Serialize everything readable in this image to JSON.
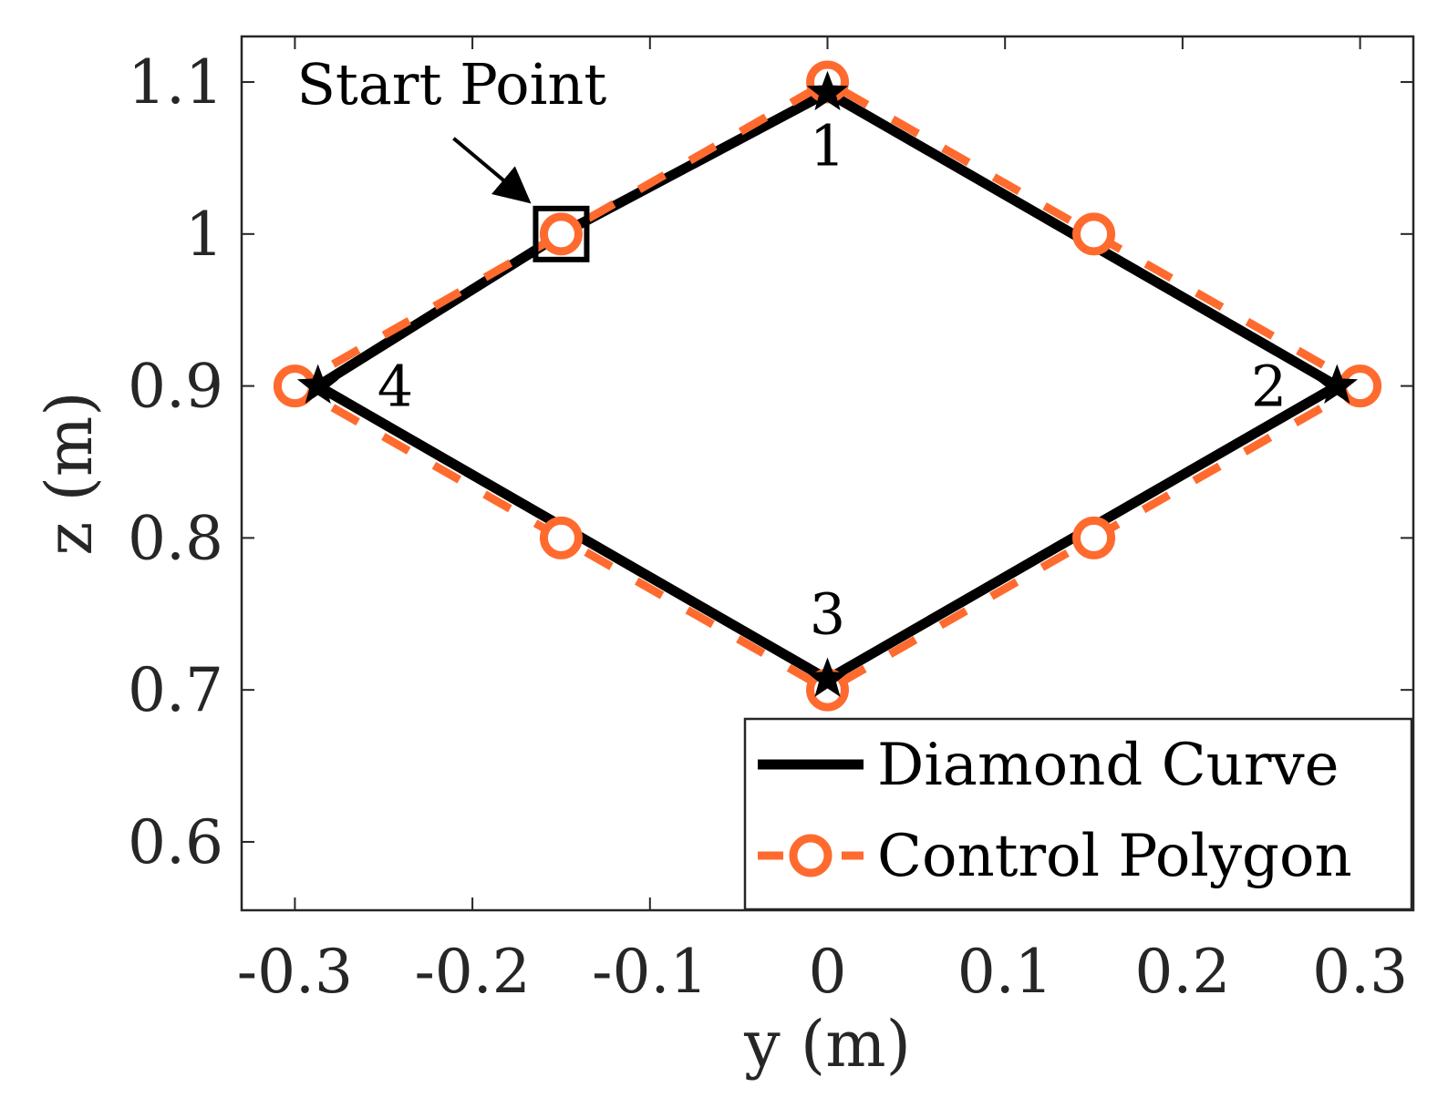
{
  "chart_data": {
    "type": "line",
    "title": "",
    "xlabel": "y (m)",
    "ylabel": "z (m)",
    "xlim": [
      -0.33,
      0.33
    ],
    "ylim": [
      0.555,
      1.13
    ],
    "xticks": [
      -0.3,
      -0.2,
      -0.1,
      0,
      0.1,
      0.2,
      0.3
    ],
    "xtick_labels": [
      "-0.3",
      "-0.2",
      "-0.1",
      "0",
      "0.1",
      "0.2",
      "0.3"
    ],
    "yticks": [
      0.6,
      0.7,
      0.8,
      0.9,
      1.0,
      1.1
    ],
    "ytick_labels": [
      "0.6",
      "0.7",
      "0.8",
      "0.9",
      "1",
      "1.1"
    ],
    "grid": false,
    "legend_position": "bottom-right",
    "series": [
      {
        "name": "Diamond Curve",
        "color": "#000000",
        "style": "solid",
        "x": [
          -0.15,
          -0.287,
          0,
          0.287,
          0,
          -0.15
        ],
        "y": [
          1.0,
          0.9,
          0.707,
          0.9,
          1.093,
          1.0
        ]
      },
      {
        "name": "Control Polygon",
        "color": "#ff6a2e",
        "style": "dashed",
        "marker": "circle",
        "x": [
          -0.15,
          -0.3,
          -0.15,
          0,
          0.15,
          0.3,
          0.15,
          0,
          -0.15
        ],
        "y": [
          1.0,
          0.9,
          0.8,
          0.7,
          0.8,
          0.9,
          1.0,
          1.1,
          1.0
        ]
      }
    ],
    "waypoints": [
      {
        "label": "1",
        "x": 0,
        "y": 1.093
      },
      {
        "label": "2",
        "x": 0.287,
        "y": 0.9
      },
      {
        "label": "3",
        "x": 0,
        "y": 0.707
      },
      {
        "label": "4",
        "x": -0.287,
        "y": 0.9
      }
    ],
    "start_point": {
      "label": "Start Point",
      "x": -0.15,
      "y": 1.0
    }
  }
}
